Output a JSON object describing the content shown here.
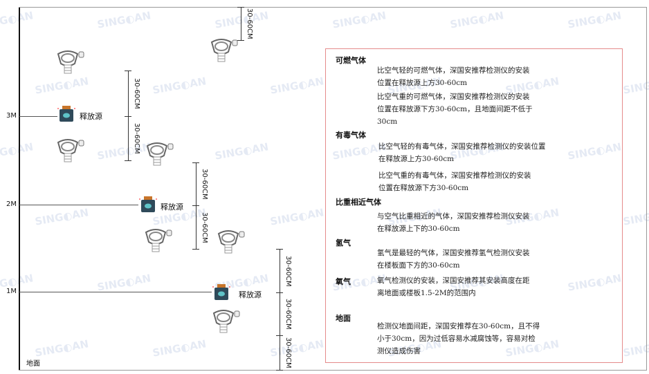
{
  "watermark": "SINGOAN 深国安",
  "levels": {
    "l3": "3M",
    "l2": "2M",
    "l1": "1M",
    "floor": "地面"
  },
  "source_label": "释放源",
  "dim_label": "30-60CM",
  "notes": {
    "combustible": {
      "title": "可燃气体",
      "p1": [
        "比空气轻的可燃气体，深国安推荐检测仪的安装",
        "位置在释放源上方30-60cm"
      ],
      "p2": [
        "比空气重的可燃气体，深国安推荐检测仪的安装",
        "位置在释放源下方30-60cm，且地面间距不低于",
        "30cm"
      ]
    },
    "toxic": {
      "title": "有毒气体",
      "p1": [
        "比空气轻的有毒气体，深国安推荐检测仪的安装位置",
        "在释放源上方30-60cm"
      ],
      "p2": [
        "比空气重的有毒气体，深国安推荐检测仪的安装",
        "位置在释放源下方30-60cm"
      ]
    },
    "similar": {
      "title": "比重相近气体",
      "p1": [
        "与空气比重相近的气体，深国安推荐检测仪安装",
        "在释放源上下的30-60cm"
      ]
    },
    "hydrogen": {
      "title": "氢气",
      "p1": [
        "氢气是最轻的气体，深国安推荐氢气检测仪安装",
        "在楼板面下方的30-60cm"
      ]
    },
    "oxygen": {
      "title": "氧气",
      "p1": [
        "氧气检测仪的安装，深国安推荐其安装高度在距",
        "离地面或楼板1.5-2M的范围内"
      ]
    },
    "ground": {
      "title": "地面",
      "p1": [
        "检测仪地面间距，深国安推荐在30-60cm，且不得",
        "小于30cm，因为过低容易水减腐蚀等，容易对检",
        "测仪造成伤害"
      ]
    }
  },
  "colors": {
    "border": "#e58a8a",
    "source_body": "#2f4a5a",
    "source_cap": "#c8752a"
  }
}
